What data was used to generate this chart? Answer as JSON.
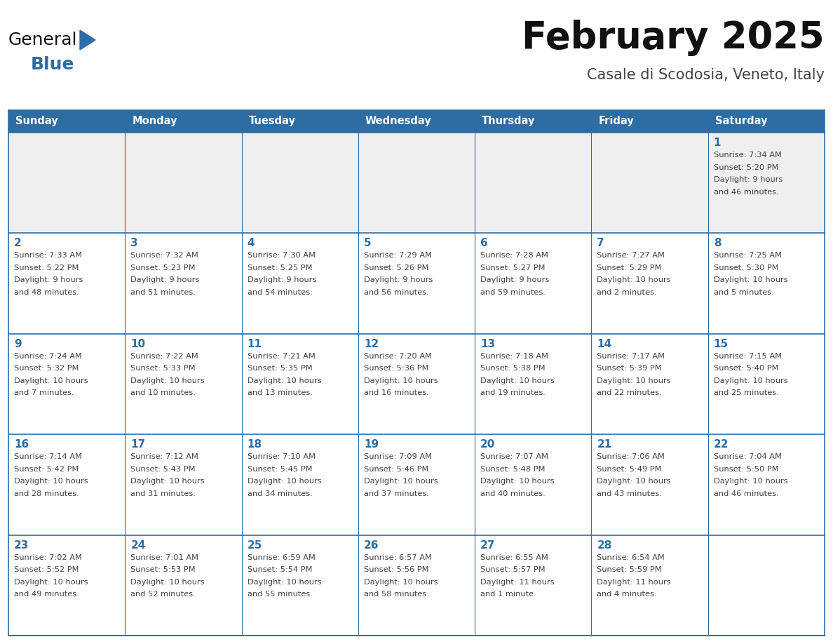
{
  "title": "February 2025",
  "subtitle": "Casale di Scodosia, Veneto, Italy",
  "header_bg": "#2E6DA4",
  "header_text": "#FFFFFF",
  "header_days": [
    "Sunday",
    "Monday",
    "Tuesday",
    "Wednesday",
    "Thursday",
    "Friday",
    "Saturday"
  ],
  "cell_bg": "#FFFFFF",
  "row1_bg": "#EFEFEF",
  "border_color": "#2E6DA4",
  "text_color": "#404040",
  "day_number_color": "#2E6DA4",
  "logo_general_color": "#111111",
  "logo_blue_color": "#2E6DA4",
  "calendar_data": [
    [
      null,
      null,
      null,
      null,
      null,
      null,
      {
        "day": 1,
        "sunrise": "7:34 AM",
        "sunset": "5:20 PM",
        "daylight": "9 hours and 46 minutes."
      }
    ],
    [
      {
        "day": 2,
        "sunrise": "7:33 AM",
        "sunset": "5:22 PM",
        "daylight": "9 hours and 48 minutes."
      },
      {
        "day": 3,
        "sunrise": "7:32 AM",
        "sunset": "5:23 PM",
        "daylight": "9 hours and 51 minutes."
      },
      {
        "day": 4,
        "sunrise": "7:30 AM",
        "sunset": "5:25 PM",
        "daylight": "9 hours and 54 minutes."
      },
      {
        "day": 5,
        "sunrise": "7:29 AM",
        "sunset": "5:26 PM",
        "daylight": "9 hours and 56 minutes."
      },
      {
        "day": 6,
        "sunrise": "7:28 AM",
        "sunset": "5:27 PM",
        "daylight": "9 hours and 59 minutes."
      },
      {
        "day": 7,
        "sunrise": "7:27 AM",
        "sunset": "5:29 PM",
        "daylight": "10 hours and 2 minutes."
      },
      {
        "day": 8,
        "sunrise": "7:25 AM",
        "sunset": "5:30 PM",
        "daylight": "10 hours and 5 minutes."
      }
    ],
    [
      {
        "day": 9,
        "sunrise": "7:24 AM",
        "sunset": "5:32 PM",
        "daylight": "10 hours and 7 minutes."
      },
      {
        "day": 10,
        "sunrise": "7:22 AM",
        "sunset": "5:33 PM",
        "daylight": "10 hours and 10 minutes."
      },
      {
        "day": 11,
        "sunrise": "7:21 AM",
        "sunset": "5:35 PM",
        "daylight": "10 hours and 13 minutes."
      },
      {
        "day": 12,
        "sunrise": "7:20 AM",
        "sunset": "5:36 PM",
        "daylight": "10 hours and 16 minutes."
      },
      {
        "day": 13,
        "sunrise": "7:18 AM",
        "sunset": "5:38 PM",
        "daylight": "10 hours and 19 minutes."
      },
      {
        "day": 14,
        "sunrise": "7:17 AM",
        "sunset": "5:39 PM",
        "daylight": "10 hours and 22 minutes."
      },
      {
        "day": 15,
        "sunrise": "7:15 AM",
        "sunset": "5:40 PM",
        "daylight": "10 hours and 25 minutes."
      }
    ],
    [
      {
        "day": 16,
        "sunrise": "7:14 AM",
        "sunset": "5:42 PM",
        "daylight": "10 hours and 28 minutes."
      },
      {
        "day": 17,
        "sunrise": "7:12 AM",
        "sunset": "5:43 PM",
        "daylight": "10 hours and 31 minutes."
      },
      {
        "day": 18,
        "sunrise": "7:10 AM",
        "sunset": "5:45 PM",
        "daylight": "10 hours and 34 minutes."
      },
      {
        "day": 19,
        "sunrise": "7:09 AM",
        "sunset": "5:46 PM",
        "daylight": "10 hours and 37 minutes."
      },
      {
        "day": 20,
        "sunrise": "7:07 AM",
        "sunset": "5:48 PM",
        "daylight": "10 hours and 40 minutes."
      },
      {
        "day": 21,
        "sunrise": "7:06 AM",
        "sunset": "5:49 PM",
        "daylight": "10 hours and 43 minutes."
      },
      {
        "day": 22,
        "sunrise": "7:04 AM",
        "sunset": "5:50 PM",
        "daylight": "10 hours and 46 minutes."
      }
    ],
    [
      {
        "day": 23,
        "sunrise": "7:02 AM",
        "sunset": "5:52 PM",
        "daylight": "10 hours and 49 minutes."
      },
      {
        "day": 24,
        "sunrise": "7:01 AM",
        "sunset": "5:53 PM",
        "daylight": "10 hours and 52 minutes."
      },
      {
        "day": 25,
        "sunrise": "6:59 AM",
        "sunset": "5:54 PM",
        "daylight": "10 hours and 55 minutes."
      },
      {
        "day": 26,
        "sunrise": "6:57 AM",
        "sunset": "5:56 PM",
        "daylight": "10 hours and 58 minutes."
      },
      {
        "day": 27,
        "sunrise": "6:55 AM",
        "sunset": "5:57 PM",
        "daylight": "11 hours and 1 minute."
      },
      {
        "day": 28,
        "sunrise": "6:54 AM",
        "sunset": "5:59 PM",
        "daylight": "11 hours and 4 minutes."
      },
      null
    ]
  ],
  "n_rows": 5,
  "n_cols": 7,
  "figsize": [
    11.88,
    9.18
  ],
  "dpi": 100
}
